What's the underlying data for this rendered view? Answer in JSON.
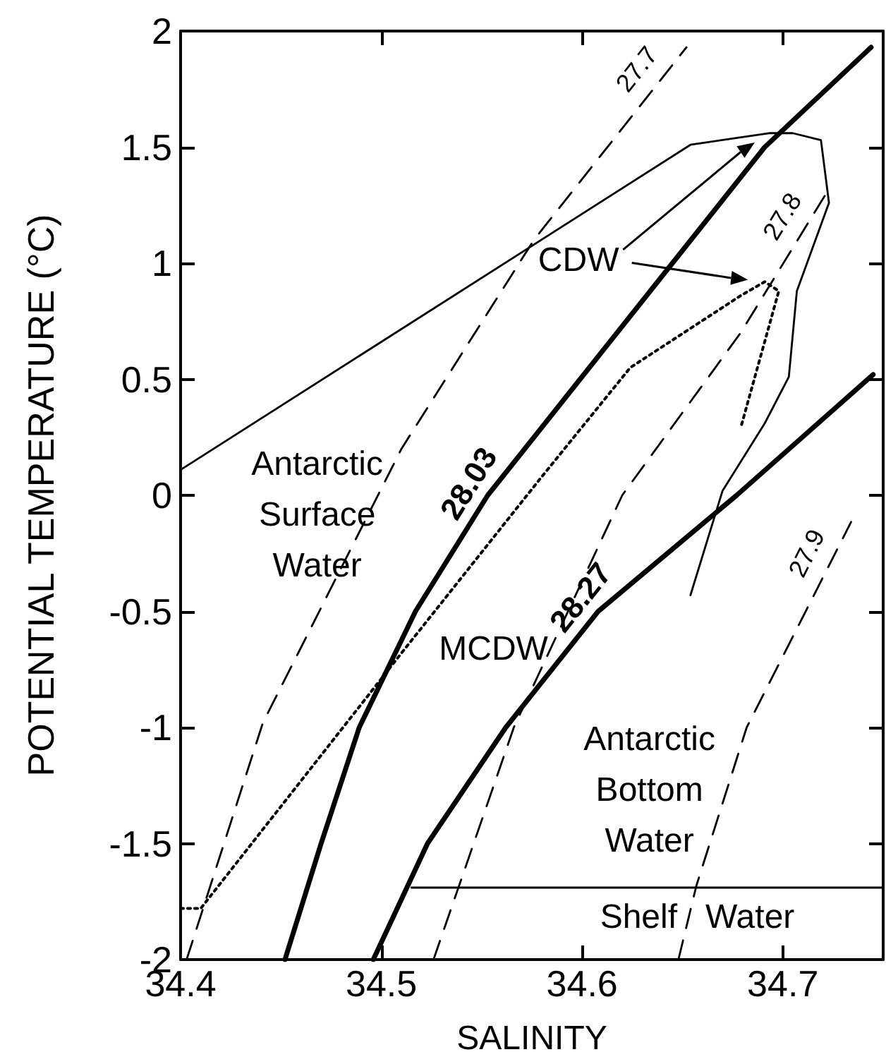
{
  "chart_data": {
    "type": "line",
    "xlabel": "SALINITY",
    "ylabel": "POTENTIAL TEMPERATURE (°C)",
    "xlim": [
      34.4,
      34.75
    ],
    "xticks": [
      34.4,
      34.5,
      34.6,
      34.7
    ],
    "ylim": [
      -2,
      2
    ],
    "yticks": [
      -2,
      -1.5,
      -1,
      -0.5,
      0,
      0.5,
      1,
      1.5,
      2
    ],
    "grid": false,
    "marker": "none",
    "series": [
      {
        "color": "#000000",
        "line_style": "solid",
        "x": [
          34.4,
          34.654,
          34.693,
          34.705,
          34.719,
          34.723,
          34.707,
          34.703,
          34.691,
          34.67,
          34.654
        ],
        "values": [
          0.11,
          1.51,
          1.56,
          1.56,
          1.53,
          1.26,
          0.88,
          0.51,
          0.31,
          0.02,
          -0.43
        ]
      },
      {
        "color": "#000000",
        "line_style": "dotted",
        "x": [
          34.4,
          34.41,
          34.51,
          34.579,
          34.624,
          34.679,
          34.691,
          34.698,
          34.679
        ],
        "values": [
          -1.78,
          -1.78,
          -0.68,
          0.07,
          0.55,
          0.86,
          0.92,
          0.88,
          0.29
        ]
      },
      {
        "name": "28.03",
        "color": "#000000",
        "line_style": "solid",
        "x": [
          34.452,
          34.47,
          34.489,
          34.517,
          34.553,
          34.599,
          34.645,
          34.691,
          34.744
        ],
        "values": [
          -2,
          -1.5,
          -1,
          -0.5,
          0,
          0.5,
          1,
          1.5,
          1.93
        ]
      },
      {
        "name": "28.27",
        "color": "#000000",
        "line_style": "solid",
        "x": [
          34.496,
          34.523,
          34.562,
          34.608,
          34.677,
          34.745
        ],
        "values": [
          -2,
          -1.5,
          -1,
          -0.5,
          0,
          0.52
        ]
      },
      {
        "name": "27.7",
        "color": "#000000",
        "line_style": "dashed",
        "x": [
          34.403,
          34.441,
          34.51,
          34.576,
          34.652
        ],
        "values": [
          -2,
          -0.98,
          0.2,
          1.1,
          1.93
        ]
      },
      {
        "name": "27.8",
        "color": "#000000",
        "line_style": "dashed",
        "x": [
          34.526,
          34.566,
          34.62,
          34.679,
          34.723
        ],
        "values": [
          -2,
          -1,
          0,
          0.7,
          1.32
        ]
      },
      {
        "name": "27.9",
        "color": "#000000",
        "line_style": "dashed",
        "x": [
          34.648,
          34.657,
          34.682,
          34.734
        ],
        "values": [
          -2,
          -1.68,
          -1,
          -0.115
        ]
      },
      {
        "color": "#000000",
        "line_style": "solid",
        "x": [
          34.515,
          34.75
        ],
        "values": [
          -1.69,
          -1.69
        ]
      }
    ],
    "annotations": [
      "CDW",
      "MCDW",
      "Antarctic\nSurface\nWater",
      "Antarctic\nBottom\nWater",
      "Shelf   Water"
    ]
  }
}
